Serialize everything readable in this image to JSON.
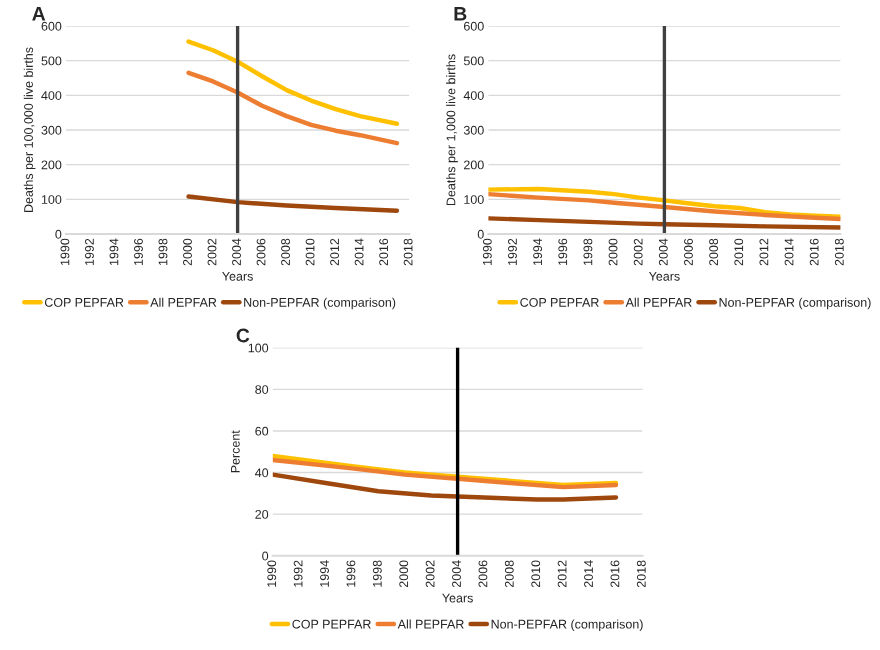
{
  "chart_data": [
    {
      "type": "line",
      "title": "A",
      "xlabel": "Years",
      "ylabel": "Deaths per 100,000 live births",
      "xlim": [
        1990,
        2018
      ],
      "xticks": [
        1990,
        1992,
        1994,
        1996,
        1998,
        2000,
        2002,
        2004,
        2006,
        2008,
        2010,
        2012,
        2014,
        2016,
        2018
      ],
      "ylim": [
        0,
        600
      ],
      "yticks": [
        0,
        100,
        200,
        300,
        400,
        500,
        600
      ],
      "grid": "y",
      "legend": "bottom",
      "ref_lines": [
        {
          "axis": "x",
          "value": 2004,
          "color": "#404040"
        }
      ],
      "series": [
        {
          "name": "COP PEPFAR",
          "color": "#ffc000",
          "x": [
            2000,
            2002,
            2004,
            2006,
            2008,
            2010,
            2012,
            2014,
            2017
          ],
          "values": [
            555,
            530,
            497,
            455,
            415,
            385,
            360,
            340,
            318
          ]
        },
        {
          "name": "All PEPFAR",
          "color": "#ed7d31",
          "x": [
            2000,
            2002,
            2004,
            2006,
            2008,
            2010,
            2012,
            2014,
            2017
          ],
          "values": [
            465,
            440,
            408,
            370,
            340,
            315,
            298,
            285,
            262
          ]
        },
        {
          "name": "Non-PEPFAR (comparison)",
          "color": "#9e480e",
          "x": [
            2000,
            2004,
            2008,
            2012,
            2017
          ],
          "values": [
            108,
            92,
            82,
            75,
            67
          ]
        }
      ]
    },
    {
      "type": "line",
      "title": "B",
      "xlabel": "Years",
      "ylabel": "Deaths per 1,000 live births",
      "xlim": [
        1990,
        2018
      ],
      "xticks": [
        1990,
        1992,
        1994,
        1996,
        1998,
        2000,
        2002,
        2004,
        2006,
        2008,
        2010,
        2012,
        2014,
        2016,
        2018
      ],
      "ylim": [
        0,
        600
      ],
      "yticks": [
        0,
        100,
        200,
        300,
        400,
        500,
        600
      ],
      "grid": "y",
      "legend": "bottom",
      "ref_lines": [
        {
          "axis": "x",
          "value": 2004,
          "color": "#404040"
        }
      ],
      "series": [
        {
          "name": "COP PEPFAR",
          "color": "#ffc000",
          "x": [
            1990,
            1994,
            1998,
            2000,
            2002,
            2004,
            2006,
            2008,
            2010,
            2012,
            2014,
            2016,
            2018
          ],
          "values": [
            128,
            130,
            122,
            115,
            105,
            97,
            88,
            80,
            75,
            63,
            56,
            53,
            50
          ]
        },
        {
          "name": "All PEPFAR",
          "color": "#ed7d31",
          "x": [
            1990,
            1994,
            1998,
            2000,
            2004,
            2008,
            2012,
            2016,
            2018
          ],
          "values": [
            115,
            105,
            97,
            90,
            78,
            65,
            55,
            47,
            43
          ]
        },
        {
          "name": "Non-PEPFAR (comparison)",
          "color": "#9e480e",
          "x": [
            1990,
            1994,
            1998,
            2002,
            2004,
            2008,
            2012,
            2018
          ],
          "values": [
            45,
            40,
            35,
            30,
            28,
            25,
            22,
            19
          ]
        }
      ]
    },
    {
      "type": "line",
      "title": "C",
      "xlabel": "Years",
      "ylabel": "Percent",
      "xlim": [
        1990,
        2018
      ],
      "xticks": [
        1990,
        1992,
        1994,
        1996,
        1998,
        2000,
        2002,
        2004,
        2006,
        2008,
        2010,
        2012,
        2014,
        2016,
        2018
      ],
      "ylim": [
        0,
        100
      ],
      "yticks": [
        0,
        20,
        40,
        60,
        80,
        100
      ],
      "grid": "y",
      "legend": "bottom",
      "ref_lines": [
        {
          "axis": "x",
          "value": 2004,
          "color": "#000000"
        }
      ],
      "series": [
        {
          "name": "COP PEPFAR",
          "color": "#ffc000",
          "x": [
            1990,
            1996,
            2000,
            2004,
            2008,
            2012,
            2016
          ],
          "values": [
            48,
            43,
            40,
            38,
            36,
            34,
            35
          ]
        },
        {
          "name": "All PEPFAR",
          "color": "#ed7d31",
          "x": [
            1990,
            1996,
            2000,
            2004,
            2008,
            2012,
            2016
          ],
          "values": [
            46,
            42,
            39,
            37,
            35,
            33,
            34
          ]
        },
        {
          "name": "Non-PEPFAR (comparison)",
          "color": "#9e480e",
          "x": [
            1990,
            1994,
            1998,
            2002,
            2006,
            2010,
            2012,
            2016
          ],
          "values": [
            39,
            35,
            31,
            29,
            28,
            27,
            27,
            28
          ]
        }
      ]
    }
  ]
}
